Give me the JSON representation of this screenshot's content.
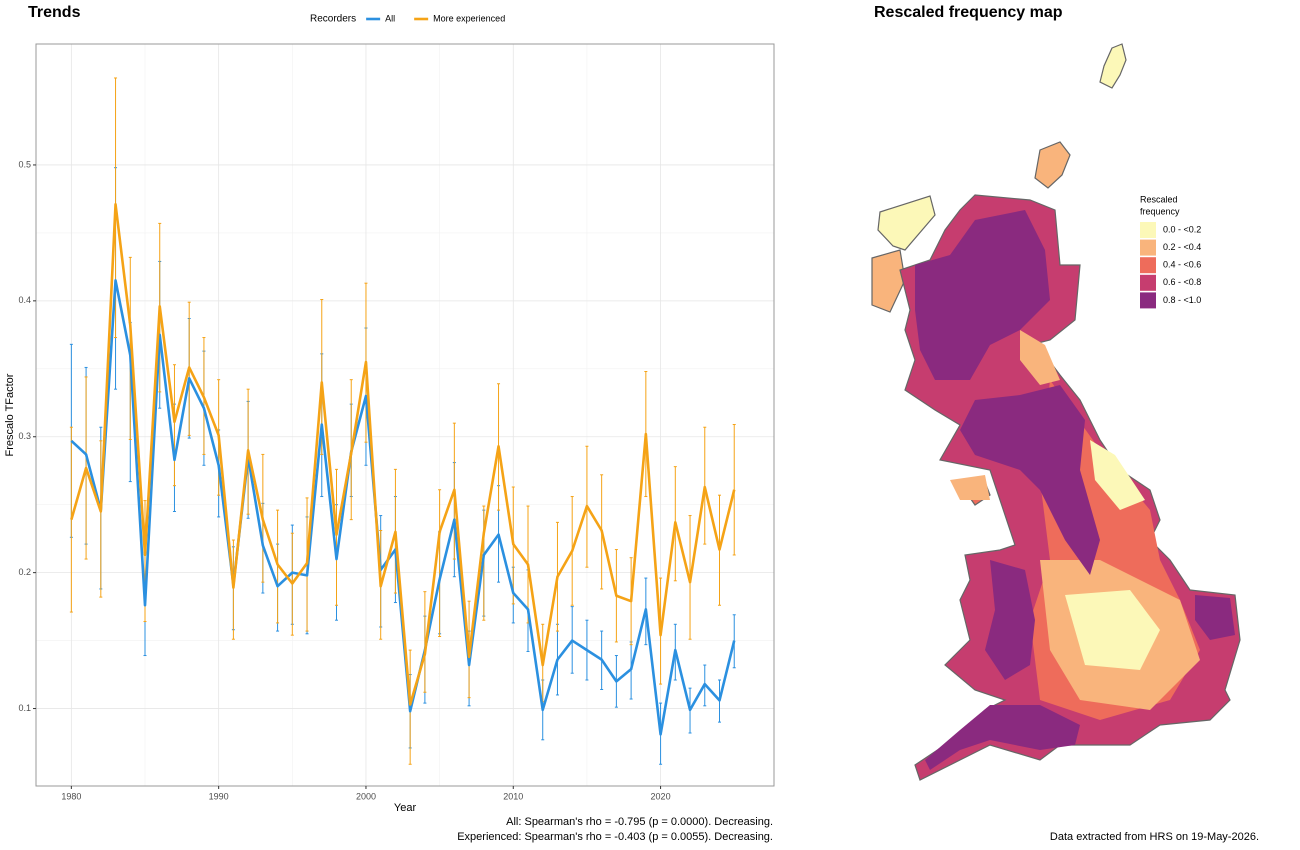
{
  "chart_data": {
    "type": "line",
    "title": "Trends",
    "x_label": "Year",
    "y_label": "Frescalo TFactor",
    "legend_title": "Recorders",
    "legend_position": "top",
    "grid": true,
    "minor_grid": true,
    "annotations": [
      "All: Spearman's rho = -0.795 (p = 0.0000). Decreasing.",
      "Experienced: Spearman's rho = -0.403 (p = 0.0055). Decreasing."
    ],
    "xlim": [
      1977.6,
      2027.7
    ],
    "ylim": [
      0.043,
      0.589
    ],
    "xticks": [
      1980,
      1990,
      2000,
      2010,
      2020
    ],
    "yticks": [
      0.1,
      0.2,
      0.3,
      0.4,
      0.5
    ],
    "x": [
      1980,
      1981,
      1982,
      1983,
      1984,
      1985,
      1986,
      1987,
      1988,
      1989,
      1990,
      1991,
      1992,
      1993,
      1994,
      1995,
      1996,
      1997,
      1998,
      1999,
      2000,
      2001,
      2002,
      2003,
      2004,
      2005,
      2006,
      2007,
      2008,
      2009,
      2010,
      2011,
      2012,
      2013,
      2014,
      2015,
      2016,
      2017,
      2018,
      2019,
      2020,
      2021,
      2022,
      2023,
      2024,
      2025
    ],
    "series": [
      {
        "name": "All",
        "color": "#2b90e0",
        "values": [
          0.297,
          0.287,
          0.246,
          0.415,
          0.36,
          0.176,
          0.375,
          0.283,
          0.343,
          0.321,
          0.279,
          0.191,
          0.285,
          0.22,
          0.19,
          0.2,
          0.198,
          0.309,
          0.21,
          0.289,
          0.33,
          0.202,
          0.217,
          0.098,
          0.143,
          0.195,
          0.239,
          0.132,
          0.213,
          0.228,
          0.185,
          0.173,
          0.099,
          0.136,
          0.15,
          0.143,
          0.136,
          0.12,
          0.129,
          0.173,
          0.081,
          0.143,
          0.099,
          0.118,
          0.106,
          0.15
        ],
        "lower": [
          0.226,
          0.221,
          0.188,
          0.335,
          0.267,
          0.139,
          0.321,
          0.245,
          0.299,
          0.279,
          0.241,
          0.158,
          0.24,
          0.185,
          0.157,
          0.162,
          0.155,
          0.256,
          0.165,
          0.256,
          0.279,
          0.16,
          0.178,
          0.071,
          0.104,
          0.155,
          0.197,
          0.102,
          0.168,
          0.193,
          0.163,
          0.142,
          0.077,
          0.11,
          0.126,
          0.121,
          0.114,
          0.101,
          0.107,
          0.147,
          0.059,
          0.121,
          0.082,
          0.102,
          0.09,
          0.13
        ],
        "upper": [
          0.368,
          0.351,
          0.307,
          0.498,
          0.384,
          0.215,
          0.429,
          0.324,
          0.387,
          0.363,
          0.305,
          0.219,
          0.326,
          0.251,
          0.221,
          0.235,
          0.241,
          0.361,
          0.25,
          0.324,
          0.38,
          0.242,
          0.256,
          0.125,
          0.168,
          0.23,
          0.281,
          0.157,
          0.246,
          0.264,
          0.204,
          0.202,
          0.121,
          0.162,
          0.175,
          0.165,
          0.157,
          0.139,
          0.149,
          0.196,
          0.104,
          0.162,
          0.115,
          0.132,
          0.121,
          0.169
        ]
      },
      {
        "name": "More experienced",
        "color": "#f5a316",
        "values": [
          0.239,
          0.277,
          0.245,
          0.471,
          0.382,
          0.213,
          0.396,
          0.311,
          0.351,
          0.329,
          0.301,
          0.189,
          0.29,
          0.239,
          0.206,
          0.192,
          0.207,
          0.34,
          0.228,
          0.288,
          0.355,
          0.19,
          0.23,
          0.103,
          0.14,
          0.23,
          0.261,
          0.138,
          0.229,
          0.293,
          0.221,
          0.206,
          0.132,
          0.197,
          0.216,
          0.249,
          0.231,
          0.183,
          0.179,
          0.302,
          0.154,
          0.237,
          0.193,
          0.263,
          0.217,
          0.261
        ],
        "lower": [
          0.171,
          0.21,
          0.182,
          0.373,
          0.298,
          0.164,
          0.333,
          0.264,
          0.301,
          0.287,
          0.257,
          0.151,
          0.243,
          0.193,
          0.163,
          0.154,
          0.157,
          0.287,
          0.176,
          0.239,
          0.296,
          0.151,
          0.185,
          0.059,
          0.112,
          0.153,
          0.21,
          0.108,
          0.165,
          0.246,
          0.177,
          0.163,
          0.105,
          0.157,
          0.176,
          0.204,
          0.188,
          0.149,
          0.147,
          0.256,
          0.118,
          0.194,
          0.151,
          0.221,
          0.176,
          0.213
        ],
        "upper": [
          0.307,
          0.344,
          0.297,
          0.564,
          0.432,
          0.253,
          0.457,
          0.353,
          0.399,
          0.373,
          0.342,
          0.224,
          0.335,
          0.287,
          0.246,
          0.229,
          0.255,
          0.401,
          0.276,
          0.342,
          0.413,
          0.231,
          0.276,
          0.143,
          0.186,
          0.261,
          0.31,
          0.179,
          0.249,
          0.339,
          0.263,
          0.249,
          0.162,
          0.237,
          0.256,
          0.293,
          0.272,
          0.217,
          0.211,
          0.348,
          0.196,
          0.278,
          0.242,
          0.307,
          0.257,
          0.309
        ]
      }
    ]
  },
  "map": {
    "title": "Rescaled frequency map",
    "legend_title": [
      "Rescaled",
      "frequency"
    ],
    "legend": [
      {
        "label": "0.0 - <0.2",
        "color": "#fcf8b8"
      },
      {
        "label": "0.2 - <0.4",
        "color": "#f9b47c"
      },
      {
        "label": "0.4 - <0.6",
        "color": "#ee6c5b"
      },
      {
        "label": "0.6 - <0.8",
        "color": "#c63d6f"
      },
      {
        "label": "0.8 - <1.0",
        "color": "#8a2a7f"
      }
    ],
    "caption": "Data extracted from HRS on 19-May-2026."
  }
}
